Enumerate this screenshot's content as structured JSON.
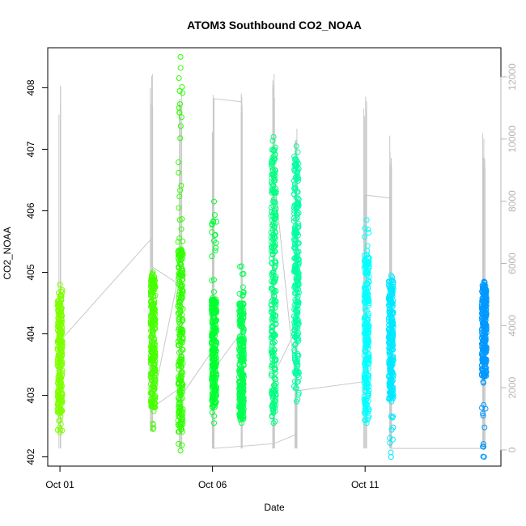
{
  "chart_data": {
    "type": "scatter",
    "title": "ATOM3 Southbound CO2_NOAA",
    "xlabel": "Date",
    "ylabel": "CO2_NOAA",
    "x_ticks": [
      "Oct 01",
      "Oct 06",
      "Oct 11"
    ],
    "x_tick_days": [
      1,
      6,
      11
    ],
    "xlim": [
      1,
      15
    ],
    "ylim": [
      402,
      408.5
    ],
    "y_ticks": [
      402,
      403,
      404,
      405,
      406,
      407,
      408
    ],
    "right_axis": {
      "label": "",
      "ticks": [
        0,
        2000,
        4000,
        6000,
        8000,
        10000,
        12000
      ],
      "ylim": [
        0,
        12200
      ],
      "color": "#b5b5b5"
    },
    "legend": "none",
    "grid": false,
    "marker": "open-circle",
    "series": [
      {
        "day": 1.0,
        "y_min": 402.4,
        "y_max": 404.8,
        "dense_min": 402.7,
        "dense_max": 404.7,
        "color": "#7fff00"
      },
      {
        "day": 4.05,
        "y_min": 402.45,
        "y_max": 405.0,
        "dense_min": 402.8,
        "dense_max": 405.0,
        "color": "#47ff00"
      },
      {
        "day": 4.95,
        "y_min": 402.1,
        "y_max": 408.5,
        "dense_min": 402.4,
        "dense_max": 405.4,
        "color": "#30ff00"
      },
      {
        "day": 6.05,
        "y_min": 402.55,
        "y_max": 406.15,
        "dense_min": 402.8,
        "dense_max": 404.6,
        "color": "#00ff30"
      },
      {
        "day": 6.95,
        "y_min": 402.55,
        "y_max": 405.1,
        "dense_min": 402.6,
        "dense_max": 404.5,
        "color": "#00ff50"
      },
      {
        "day": 8.0,
        "y_min": 402.55,
        "y_max": 407.2,
        "dense_min": 402.7,
        "dense_max": 407.1,
        "color": "#00ff80"
      },
      {
        "day": 8.75,
        "y_min": 402.9,
        "y_max": 407.05,
        "dense_min": 403.2,
        "dense_max": 406.9,
        "color": "#00ffa0"
      },
      {
        "day": 11.05,
        "y_min": 402.55,
        "y_max": 405.85,
        "dense_min": 402.7,
        "dense_max": 405.3,
        "color": "#00ffff"
      },
      {
        "day": 11.85,
        "y_min": 402.0,
        "y_max": 404.95,
        "dense_min": 402.9,
        "dense_max": 404.9,
        "color": "#00e8ff"
      },
      {
        "day": 14.9,
        "y_min": 402.0,
        "y_max": 404.85,
        "dense_min": 403.3,
        "dense_max": 404.8,
        "color": "#0099ff"
      }
    ],
    "altitude_series": {
      "name": "",
      "color": "#c8c8c8",
      "spikes": [
        {
          "day": 1.0,
          "low": 50,
          "high": 12200
        },
        {
          "day": 4.0,
          "low": 600,
          "high": 12400
        },
        {
          "day": 4.95,
          "low": 50,
          "high": 11800
        },
        {
          "day": 6.0,
          "low": 50,
          "high": 11600
        },
        {
          "day": 6.95,
          "low": 50,
          "high": 11500
        },
        {
          "day": 8.0,
          "low": 50,
          "high": 12100
        },
        {
          "day": 8.75,
          "low": 50,
          "high": 10800
        },
        {
          "day": 11.0,
          "low": 50,
          "high": 12000
        },
        {
          "day": 11.85,
          "low": 50,
          "high": 10500
        },
        {
          "day": 14.9,
          "low": 50,
          "high": 10700
        }
      ],
      "transit_path": [
        [
          1.0,
          3500
        ],
        [
          4.0,
          6800
        ],
        [
          4.0,
          5900
        ],
        [
          4.95,
          5300
        ],
        [
          4.95,
          5900
        ],
        [
          4.0,
          1350
        ],
        [
          4.95,
          2000
        ],
        [
          4.95,
          1700
        ],
        [
          6.0,
          3200
        ],
        [
          6.05,
          11300
        ],
        [
          6.95,
          11200
        ],
        [
          6.95,
          3800
        ],
        [
          6.05,
          2600
        ],
        [
          6.05,
          50
        ],
        [
          8.0,
          200
        ],
        [
          8.75,
          500
        ],
        [
          8.75,
          3900
        ],
        [
          8.0,
          2400
        ],
        [
          8.0,
          9000
        ],
        [
          8.75,
          1900
        ],
        [
          11.0,
          2200
        ],
        [
          11.0,
          8200
        ],
        [
          11.85,
          8100
        ],
        [
          11.85,
          50
        ],
        [
          14.9,
          50
        ]
      ]
    }
  }
}
